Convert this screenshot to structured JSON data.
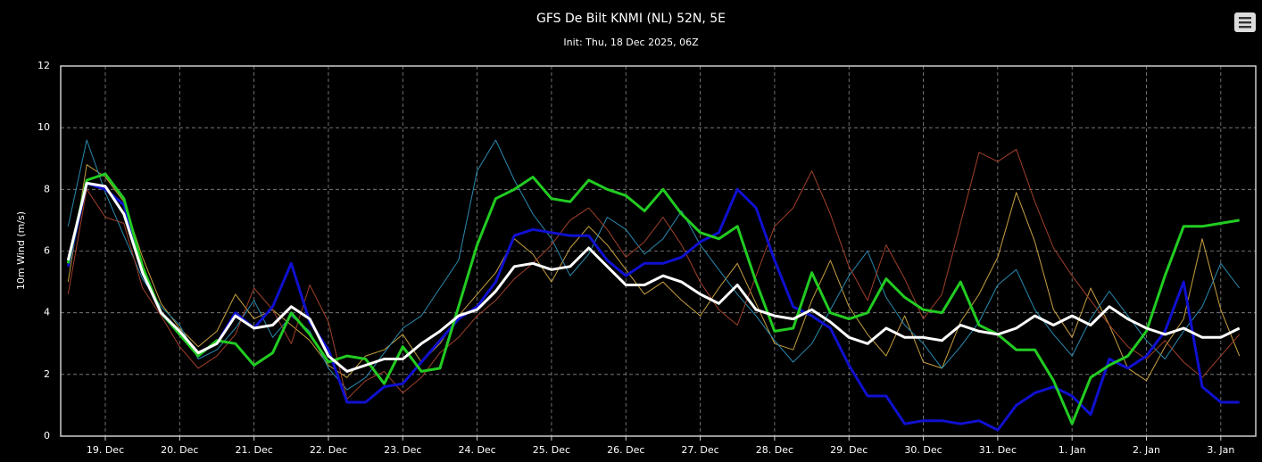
{
  "chart_data": {
    "type": "line",
    "title": "GFS De Bilt KNMI (NL) 52N, 5E",
    "subtitle": "Init: Thu, 18 Dec 2025, 06Z",
    "y_label": "10m Wind (m/s)",
    "xlim": [
      0.4,
      16.47
    ],
    "ylim": [
      0,
      12
    ],
    "yticks": [
      0,
      2,
      4,
      6,
      8,
      10,
      12
    ],
    "xticks": [
      {
        "value": 1,
        "label": "19. Dec"
      },
      {
        "value": 2,
        "label": "20. Dec"
      },
      {
        "value": 3,
        "label": "21. Dec"
      },
      {
        "value": 4,
        "label": "22. Dec"
      },
      {
        "value": 5,
        "label": "23. Dec"
      },
      {
        "value": 6,
        "label": "24. Dec"
      },
      {
        "value": 7,
        "label": "25. Dec"
      },
      {
        "value": 8,
        "label": "26. Dec"
      },
      {
        "value": 9,
        "label": "27. Dec"
      },
      {
        "value": 10,
        "label": "28. Dec"
      },
      {
        "value": 11,
        "label": "29. Dec"
      },
      {
        "value": 12,
        "label": "30. Dec"
      },
      {
        "value": 13,
        "label": "31. Dec"
      },
      {
        "value": 14,
        "label": "1. Jan"
      },
      {
        "value": 15,
        "label": "2. Jan"
      },
      {
        "value": 16,
        "label": "3. Jan"
      }
    ],
    "grid": true,
    "x": [
      0.5,
      0.75,
      1,
      1.25,
      1.5,
      1.75,
      2,
      2.25,
      2.5,
      2.75,
      3,
      3.25,
      3.5,
      3.75,
      4,
      4.25,
      4.5,
      4.75,
      5,
      5.25,
      5.5,
      5.75,
      6,
      6.25,
      6.5,
      6.75,
      7,
      7.25,
      7.5,
      7.75,
      8,
      8.25,
      8.5,
      8.75,
      9,
      9.25,
      9.5,
      9.75,
      10,
      10.25,
      10.5,
      10.75,
      11,
      11.25,
      11.5,
      11.75,
      12,
      12.25,
      12.5,
      12.75,
      13,
      13.25,
      13.5,
      13.75,
      14,
      14.25,
      14.5,
      14.75,
      15,
      15.25,
      15.5,
      15.75,
      16,
      16.25
    ],
    "series": [
      {
        "color": "#c8a040",
        "line_width": 1,
        "values": [
          5.0,
          8.8,
          8.4,
          7.6,
          5.8,
          4.3,
          3.5,
          2.9,
          3.4,
          4.6,
          3.8,
          4.1,
          3.6,
          3.1,
          2.3,
          1.9,
          2.6,
          2.8,
          3.3,
          2.4,
          3.0,
          3.9,
          4.6,
          5.3,
          6.4,
          5.9,
          5.0,
          6.1,
          6.8,
          6.2,
          5.4,
          4.6,
          5.0,
          4.4,
          3.9,
          4.8,
          5.6,
          4.3,
          3.0,
          2.8,
          4.4,
          5.7,
          4.2,
          3.3,
          2.6,
          3.9,
          2.4,
          2.2,
          3.7,
          4.6,
          5.8,
          7.9,
          6.3,
          4.1,
          3.2,
          4.8,
          3.6,
          2.2,
          1.8,
          2.9,
          3.8,
          6.4,
          4.1,
          2.6
        ]
      },
      {
        "color": "#2a8ab0",
        "line_width": 1,
        "values": [
          6.8,
          9.6,
          7.9,
          6.5,
          5.1,
          4.2,
          3.6,
          2.5,
          2.8,
          3.5,
          4.4,
          3.2,
          3.9,
          3.4,
          2.2,
          1.5,
          1.9,
          2.7,
          3.5,
          3.9,
          4.8,
          5.7,
          8.6,
          9.6,
          8.3,
          7.2,
          6.4,
          5.2,
          5.9,
          7.1,
          6.7,
          5.9,
          6.4,
          7.3,
          6.2,
          5.4,
          4.6,
          3.9,
          3.1,
          2.4,
          3.0,
          4.1,
          5.2,
          6.0,
          4.5,
          3.6,
          3.0,
          2.2,
          2.9,
          3.7,
          4.9,
          5.4,
          4.1,
          3.3,
          2.6,
          3.8,
          4.7,
          3.9,
          3.1,
          2.5,
          3.4,
          4.2,
          5.6,
          4.8
        ]
      },
      {
        "color": "#a0402a",
        "line_width": 1,
        "values": [
          4.6,
          8.0,
          7.1,
          6.9,
          4.8,
          3.9,
          2.9,
          2.2,
          2.6,
          3.3,
          4.8,
          4.1,
          3.0,
          4.9,
          3.7,
          1.2,
          1.8,
          2.1,
          1.4,
          1.9,
          2.7,
          3.2,
          3.9,
          4.4,
          5.1,
          5.6,
          6.2,
          7.0,
          7.4,
          6.7,
          5.8,
          6.3,
          7.1,
          6.2,
          5.0,
          4.1,
          3.6,
          5.2,
          6.8,
          7.4,
          8.6,
          7.2,
          5.5,
          4.4,
          6.2,
          5.1,
          3.8,
          4.6,
          6.9,
          9.2,
          8.9,
          9.3,
          7.6,
          6.1,
          5.2,
          4.4,
          3.6,
          2.9,
          2.5,
          3.1,
          2.4,
          1.9,
          2.6,
          3.3
        ]
      },
      {
        "color": "#1010d0",
        "line_width": 3,
        "values": [
          5.5,
          8.2,
          8.0,
          7.5,
          5.3,
          4.0,
          3.3,
          2.7,
          3.0,
          4.0,
          3.5,
          4.2,
          5.6,
          3.7,
          2.8,
          1.1,
          1.1,
          1.6,
          1.7,
          2.4,
          3.1,
          3.8,
          4.2,
          5.0,
          6.5,
          6.7,
          6.6,
          6.5,
          6.5,
          5.7,
          5.2,
          5.6,
          5.6,
          5.8,
          6.3,
          6.6,
          8.0,
          7.4,
          5.7,
          4.2,
          3.9,
          3.5,
          2.3,
          1.3,
          1.3,
          0.4,
          0.5,
          0.5,
          0.4,
          0.5,
          0.2,
          1.0,
          1.4,
          1.6,
          1.3,
          0.7,
          2.5,
          2.2,
          2.6,
          3.4,
          5.0,
          1.6,
          1.1,
          1.1
        ]
      },
      {
        "color": "#22cc22",
        "line_width": 3,
        "values": [
          5.6,
          8.3,
          8.5,
          7.7,
          5.5,
          4.0,
          3.3,
          2.6,
          3.1,
          3.0,
          2.3,
          2.7,
          4.0,
          3.3,
          2.4,
          2.6,
          2.5,
          1.7,
          2.9,
          2.1,
          2.2,
          4.2,
          6.2,
          7.7,
          8.0,
          8.4,
          7.7,
          7.6,
          8.3,
          8.0,
          7.8,
          7.3,
          8.0,
          7.2,
          6.6,
          6.4,
          6.8,
          5.0,
          3.4,
          3.5,
          5.3,
          4.0,
          3.8,
          4.0,
          5.1,
          4.5,
          4.1,
          4.0,
          5.0,
          3.6,
          3.3,
          2.8,
          2.8,
          1.8,
          0.4,
          1.9,
          2.3,
          2.6,
          3.4,
          5.2,
          6.8,
          6.8,
          6.9,
          7.0
        ]
      },
      {
        "color": "#ffffff",
        "line_width": 3,
        "values": [
          5.7,
          8.2,
          8.1,
          7.2,
          5.3,
          4.0,
          3.4,
          2.7,
          3.0,
          3.9,
          3.5,
          3.6,
          4.2,
          3.8,
          2.6,
          2.1,
          2.3,
          2.5,
          2.5,
          3.0,
          3.4,
          3.9,
          4.1,
          4.7,
          5.5,
          5.6,
          5.4,
          5.5,
          6.1,
          5.5,
          4.9,
          4.9,
          5.2,
          5.0,
          4.6,
          4.3,
          4.9,
          4.1,
          3.9,
          3.8,
          4.1,
          3.7,
          3.2,
          3.0,
          3.5,
          3.2,
          3.2,
          3.1,
          3.6,
          3.4,
          3.3,
          3.5,
          3.9,
          3.6,
          3.9,
          3.6,
          4.2,
          3.8,
          3.5,
          3.3,
          3.5,
          3.2,
          3.2,
          3.5
        ]
      }
    ]
  }
}
